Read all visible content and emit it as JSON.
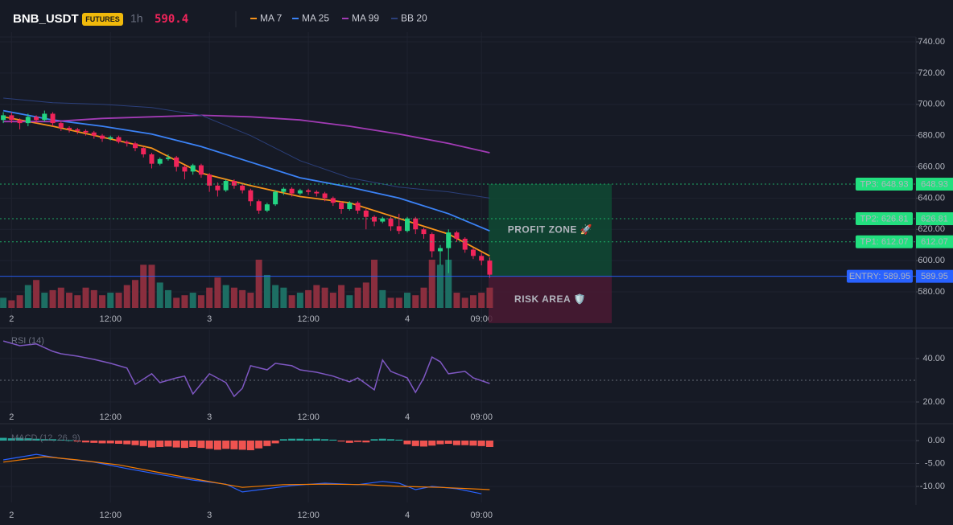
{
  "header": {
    "symbol": "BNB_USDT",
    "badge": "FUTURES",
    "interval": "1h",
    "price": 590.4
  },
  "chart_data": [
    {
      "type": "candlestick",
      "x": [
        -1,
        0,
        1,
        2,
        3,
        4,
        5,
        6,
        7,
        8,
        9,
        10,
        11,
        12,
        13,
        14,
        15,
        16,
        17,
        18,
        19,
        20,
        21,
        22,
        23,
        24,
        25,
        26,
        27,
        28,
        29,
        30,
        31,
        32,
        33,
        34,
        35,
        36,
        37,
        38,
        39,
        40,
        41,
        42,
        43,
        44,
        45,
        46,
        47,
        48,
        49,
        50,
        51,
        52,
        53,
        54,
        55,
        56,
        57,
        58
      ],
      "open": [
        690,
        693,
        690,
        688,
        692,
        690,
        694,
        688,
        685,
        684,
        683,
        682,
        680,
        678,
        679,
        676,
        675,
        672,
        668,
        662,
        665,
        666,
        660,
        657,
        661,
        655,
        648,
        645,
        651,
        648,
        645,
        638,
        632,
        636,
        644,
        646,
        643,
        645,
        644,
        643,
        640,
        637,
        633,
        637,
        632,
        628,
        625,
        627,
        622,
        619,
        627,
        620,
        617,
        606,
        608,
        618,
        614,
        607,
        603,
        600
      ],
      "high": [
        695,
        695,
        691,
        694,
        693,
        696,
        695,
        689,
        686,
        685,
        684,
        683,
        681,
        680,
        680,
        677,
        676,
        673,
        669,
        666,
        668,
        667,
        661,
        662,
        662,
        656,
        650,
        652,
        652,
        649,
        646,
        639,
        637,
        645,
        647,
        647,
        646,
        646,
        645,
        644,
        641,
        638,
        638,
        638,
        633,
        629,
        628,
        628,
        630,
        628,
        628,
        621,
        618,
        610,
        620,
        619,
        615,
        608,
        605,
        602
      ],
      "low": [
        688,
        688,
        684,
        686,
        688,
        689,
        686,
        683,
        682,
        681,
        680,
        678,
        676,
        677,
        675,
        673,
        670,
        666,
        659,
        661,
        664,
        657,
        652,
        655,
        653,
        644,
        641,
        644,
        646,
        643,
        635,
        630,
        631,
        635,
        642,
        641,
        642,
        642,
        641,
        638,
        635,
        630,
        632,
        630,
        620,
        622,
        624,
        619,
        617,
        618,
        617,
        614,
        602,
        597,
        592,
        612,
        605,
        601,
        597,
        589
      ],
      "close": [
        693,
        690,
        688,
        692,
        690,
        694,
        688,
        685,
        684,
        683,
        682,
        680,
        678,
        679,
        676,
        675,
        672,
        668,
        662,
        665,
        666,
        660,
        657,
        661,
        655,
        648,
        645,
        651,
        648,
        645,
        638,
        632,
        636,
        644,
        646,
        643,
        645,
        644,
        643,
        640,
        637,
        633,
        637,
        632,
        628,
        625,
        627,
        622,
        619,
        627,
        620,
        617,
        606,
        608,
        618,
        614,
        607,
        603,
        600,
        591
      ],
      "volume": [
        20,
        15,
        25,
        45,
        55,
        30,
        35,
        40,
        30,
        25,
        40,
        35,
        25,
        30,
        30,
        45,
        55,
        85,
        85,
        50,
        35,
        20,
        25,
        30,
        25,
        40,
        60,
        45,
        40,
        35,
        30,
        95,
        65,
        45,
        40,
        25,
        30,
        35,
        45,
        40,
        30,
        45,
        25,
        40,
        50,
        95,
        35,
        20,
        20,
        30,
        25,
        40,
        95,
        85,
        95,
        30,
        20,
        25,
        30,
        40
      ],
      "up_color": "#23d483",
      "down_color": "#f0245a",
      "volume_up_color": "#1d6e63",
      "volume_down_color": "#8a2e3e",
      "series": [
        {
          "name": "MA 7",
          "color": "#f7931a",
          "x": [
            -1,
            5,
            11,
            17,
            23,
            29,
            35,
            41,
            47,
            53,
            58
          ],
          "values": [
            692,
            686,
            679,
            672,
            656,
            648,
            641,
            637,
            627,
            617,
            603
          ]
        },
        {
          "name": "MA 25",
          "color": "#3b82f6",
          "x": [
            -1,
            5,
            11,
            17,
            23,
            29,
            35,
            41,
            47,
            53,
            58
          ],
          "values": [
            696,
            690,
            686,
            681,
            673,
            663,
            653,
            647,
            640,
            630,
            619
          ]
        },
        {
          "name": "MA 99",
          "color": "#a23bb5",
          "x": [
            -1,
            5,
            11,
            17,
            23,
            29,
            35,
            41,
            47,
            53,
            58
          ],
          "values": [
            689,
            689,
            691,
            692,
            693,
            692,
            690,
            686,
            681,
            675,
            669
          ]
        },
        {
          "name": "BB 20",
          "color": "#2b3f7a",
          "x": [
            -1,
            5,
            11,
            17,
            23,
            29,
            35,
            41,
            47,
            53,
            58
          ],
          "values": [
            704,
            701,
            700,
            698,
            693,
            680,
            664,
            653,
            647,
            644,
            640
          ]
        }
      ],
      "levels": [
        {
          "tag": "TP3: 648.93",
          "value": 648.93,
          "color": "#22e07f",
          "style": "dotted"
        },
        {
          "tag": "TP2: 626.81",
          "value": 626.81,
          "color": "#22e07f",
          "style": "dotted"
        },
        {
          "tag": "TP1: 612.07",
          "value": 612.07,
          "color": "#22e07f",
          "style": "dotted"
        },
        {
          "tag": "ENTRY: 589.95",
          "value": 589.95,
          "color": "#2962ff",
          "style": "solid"
        }
      ],
      "zones": [
        {
          "label": "PROFIT ZONE 🚀",
          "range": [
            589.95,
            648.93
          ],
          "color": "#0f4a34",
          "text_color": "#22c77a"
        },
        {
          "label": "RISK AREA 🛡️",
          "range": [
            560,
            589.95
          ],
          "color": "#4a1a33",
          "text_color": "#e91e63"
        }
      ],
      "xlim": [
        -1.4,
        109.7
      ],
      "ylim": [
        558.4,
        746.2
      ],
      "yticks": [
        {
          "value": 740,
          "label": "740.00"
        },
        {
          "value": 720,
          "label": "720.00"
        },
        {
          "value": 700,
          "label": "700.00"
        },
        {
          "value": 680,
          "label": "680.00"
        },
        {
          "value": 660,
          "label": "660.00"
        },
        {
          "value": 640,
          "label": "640.00"
        },
        {
          "value": 620,
          "label": "620.00"
        },
        {
          "value": 600,
          "label": "600.00"
        },
        {
          "value": 580,
          "label": "580.00"
        }
      ],
      "xticks": [
        {
          "value": 0,
          "label": "2"
        },
        {
          "value": 12,
          "label": "12:00"
        },
        {
          "value": 24,
          "label": "3"
        },
        {
          "value": 36,
          "label": "12:00"
        },
        {
          "value": 48,
          "label": "4"
        },
        {
          "value": 57,
          "label": "09:00"
        }
      ]
    },
    {
      "type": "line",
      "title": "RSI (14)",
      "series": [
        {
          "name": "RSI",
          "color": "#7e57c2",
          "x": [
            -1,
            1,
            3,
            5,
            6,
            8,
            10,
            12,
            14,
            15,
            17,
            18,
            20,
            21,
            22,
            24,
            26,
            27,
            28,
            29,
            31,
            32,
            34,
            35,
            37,
            39,
            41,
            42,
            44,
            45,
            46,
            48,
            49,
            50,
            51,
            52,
            53,
            55,
            56,
            58
          ],
          "values": [
            48.1,
            45.9,
            46.7,
            43.3,
            42.2,
            41.1,
            39.6,
            37.8,
            35.6,
            28.1,
            33.0,
            28.9,
            31.1,
            31.9,
            23.7,
            33.0,
            28.9,
            22.6,
            26.3,
            36.7,
            34.8,
            37.8,
            36.7,
            34.8,
            33.7,
            31.9,
            29.3,
            31.1,
            25.6,
            39.3,
            34.1,
            31.1,
            24.4,
            31.1,
            40.7,
            38.5,
            33.0,
            34.1,
            31.1,
            28.5
          ]
        }
      ],
      "hlines": [
        30
      ],
      "xlim": [
        -1.4,
        109.7
      ],
      "ylim": [
        12.6,
        53.3
      ],
      "yticks": [
        {
          "value": 40,
          "label": "40.00"
        },
        {
          "value": 20,
          "label": "20.00"
        }
      ],
      "xticks": [
        {
          "value": 0,
          "label": "2"
        },
        {
          "value": 12,
          "label": "12:00"
        },
        {
          "value": 24,
          "label": "3"
        },
        {
          "value": 36,
          "label": "12:00"
        },
        {
          "value": 48,
          "label": "4"
        },
        {
          "value": 57,
          "label": "09:00"
        }
      ]
    },
    {
      "type": "macd",
      "title": "MACD (12, 26, 9)",
      "histogram": {
        "x": [
          -1,
          0,
          1,
          2,
          3,
          4,
          5,
          6,
          7,
          8,
          9,
          10,
          11,
          12,
          13,
          14,
          15,
          16,
          17,
          18,
          19,
          20,
          21,
          22,
          23,
          24,
          25,
          26,
          27,
          28,
          29,
          30,
          31,
          32,
          33,
          34,
          35,
          36,
          37,
          38,
          39,
          40,
          41,
          42,
          43,
          44,
          45,
          46,
          47,
          48,
          49,
          50,
          51,
          52,
          53,
          54,
          55,
          56,
          57,
          58
        ],
        "values": [
          0.6,
          0.5,
          0.6,
          0.5,
          0.4,
          0.3,
          0.3,
          0.2,
          0.1,
          -0.2,
          -0.4,
          -0.5,
          -0.6,
          -0.6,
          -0.7,
          -0.8,
          -1.0,
          -1.2,
          -1.5,
          -1.4,
          -1.3,
          -1.5,
          -1.6,
          -1.4,
          -1.6,
          -1.8,
          -2.0,
          -1.8,
          -1.9,
          -2.0,
          -2.1,
          -1.7,
          -1.2,
          -0.6,
          0.3,
          0.4,
          0.4,
          0.3,
          0.4,
          0.3,
          0.2,
          -0.2,
          -0.5,
          -0.3,
          -0.4,
          0.3,
          0.4,
          0.3,
          0.2,
          -0.8,
          -1.2,
          -1.3,
          -1.1,
          -0.8,
          -0.7,
          -1.0,
          -1.0,
          -1.1,
          -1.2,
          -1.4
        ],
        "up_color": "#26a69a",
        "down_color": "#ef5350"
      },
      "series": [
        {
          "name": "MACD",
          "color": "#2962ff",
          "x": [
            -1,
            3,
            6,
            10,
            14,
            18,
            22,
            26,
            28,
            31,
            34,
            38,
            42,
            45,
            47,
            49,
            51,
            54,
            57
          ],
          "values": [
            -4.2,
            -3.0,
            -3.9,
            -4.7,
            -6.1,
            -7.4,
            -8.6,
            -9.5,
            -11.2,
            -10.5,
            -9.8,
            -9.3,
            -9.6,
            -8.9,
            -9.3,
            -10.7,
            -10.0,
            -10.5,
            -11.6
          ]
        },
        {
          "name": "Signal",
          "color": "#f57c00",
          "x": [
            -1,
            4,
            8,
            13,
            18,
            23,
            28,
            33,
            38,
            43,
            47,
            52,
            58
          ],
          "values": [
            -4.7,
            -3.5,
            -4.2,
            -5.3,
            -7.0,
            -8.6,
            -10.2,
            -9.6,
            -9.5,
            -9.6,
            -10.0,
            -10.2,
            -10.7
          ]
        }
      ],
      "xlim": [
        -1.4,
        109.7
      ],
      "ylim": [
        -13.5,
        2.63
      ],
      "yticks": [
        {
          "value": 0,
          "label": "0.00"
        },
        {
          "value": -5,
          "label": "-5.00"
        },
        {
          "value": -10,
          "label": "-10.00"
        }
      ],
      "xticks": [
        {
          "value": 0,
          "label": "2"
        },
        {
          "value": 12,
          "label": "12:00"
        },
        {
          "value": 24,
          "label": "3"
        },
        {
          "value": 36,
          "label": "12:00"
        },
        {
          "value": 48,
          "label": "4"
        },
        {
          "value": 57,
          "label": "09:00"
        }
      ]
    }
  ]
}
